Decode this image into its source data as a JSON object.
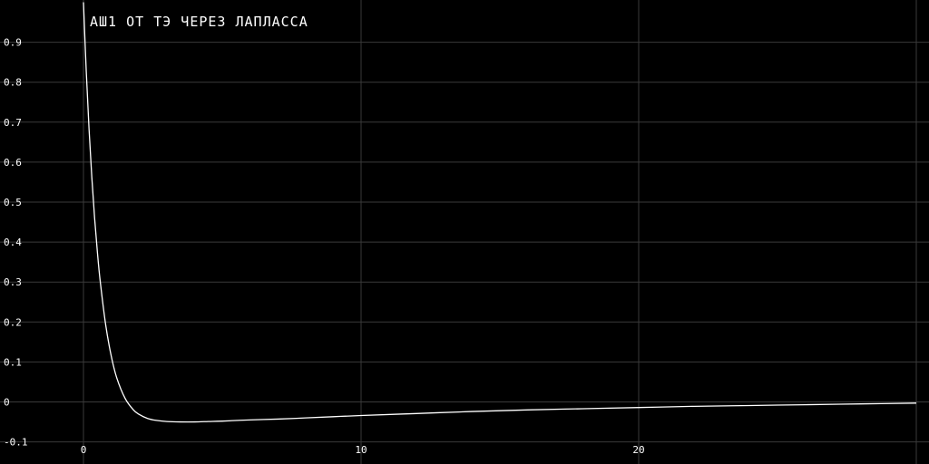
{
  "chart_data": {
    "type": "line",
    "title": "АШ1 ОТ ТЭ ЧЕРЕЗ ЛАПЛАССА",
    "xlabel": "",
    "ylabel": "",
    "xlim": [
      -0.2,
      30.2
    ],
    "ylim": [
      -0.1,
      1.0
    ],
    "grid": true,
    "colors": {
      "background": "#000000",
      "grid": "#3a3a3a",
      "line": "#ffffff",
      "text": "#ffffff"
    },
    "x_ticks": [
      0,
      10,
      20
    ],
    "x_tick_labels": [
      "0",
      "10",
      "20"
    ],
    "y_ticks": [
      -0.1,
      0,
      0.1,
      0.2,
      0.3,
      0.4,
      0.5,
      0.6,
      0.7,
      0.8,
      0.9
    ],
    "y_tick_labels": [
      "-0.1",
      "0",
      "0.1",
      "0.2",
      "0.3",
      "0.4",
      "0.5",
      "0.6",
      "0.7",
      "0.8",
      "0.9"
    ],
    "extra_x_gridlines": [
      30
    ],
    "series": [
      {
        "x": [
          0,
          0.1,
          0.2,
          0.3,
          0.4,
          0.5,
          0.6,
          0.8,
          1.0,
          1.2,
          1.5,
          1.8,
          2.0,
          2.3,
          2.6,
          3.0,
          3.5,
          4.0,
          4.5,
          5,
          6,
          7,
          8,
          9,
          10,
          12,
          14,
          16,
          18,
          20,
          22,
          24,
          26,
          28,
          30
        ],
        "y": [
          1.0,
          0.828,
          0.684,
          0.563,
          0.461,
          0.376,
          0.304,
          0.193,
          0.115,
          0.06,
          0.009,
          -0.02,
          -0.031,
          -0.041,
          -0.046,
          -0.049,
          -0.05,
          -0.05,
          -0.049,
          -0.048,
          -0.045,
          -0.043,
          -0.04,
          -0.037,
          -0.034,
          -0.029,
          -0.024,
          -0.02,
          -0.017,
          -0.014,
          -0.011,
          -0.009,
          -0.007,
          -0.005,
          -0.003
        ]
      }
    ]
  }
}
